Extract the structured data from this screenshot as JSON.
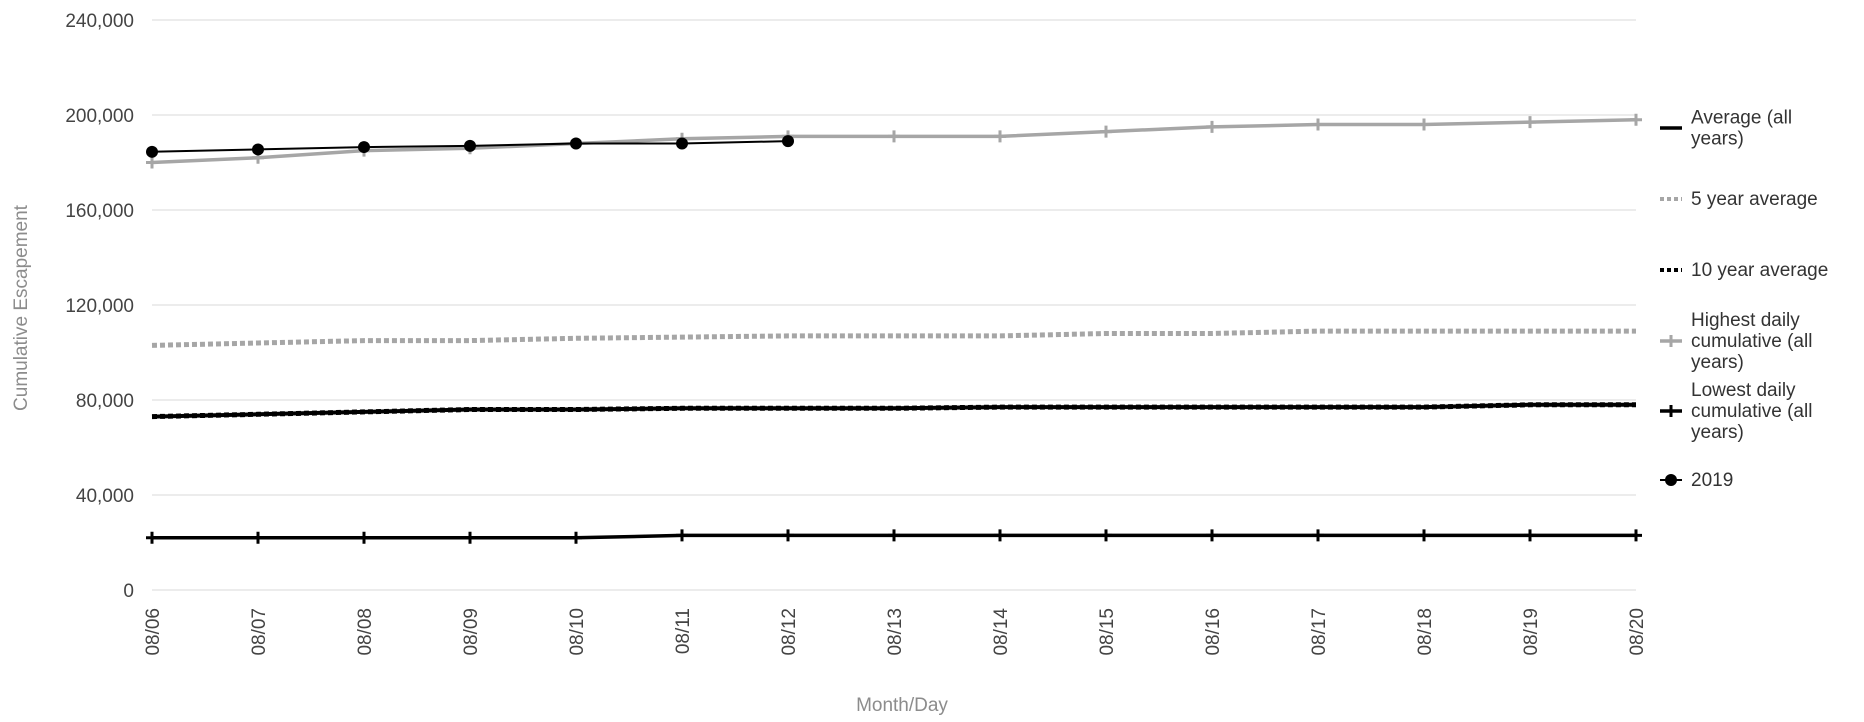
{
  "chart_data": {
    "type": "line",
    "xlabel": "Month/Day",
    "ylabel": "Cumulative Escapement",
    "categories": [
      "08/06",
      "08/07",
      "08/08",
      "08/09",
      "08/10",
      "08/11",
      "08/12",
      "08/13",
      "08/14",
      "08/15",
      "08/16",
      "08/17",
      "08/18",
      "08/19",
      "08/20"
    ],
    "ylim": [
      0,
      240000
    ],
    "yticks": [
      {
        "value": 0,
        "label": "0"
      },
      {
        "value": 40000,
        "label": "40,000"
      },
      {
        "value": 80000,
        "label": "80,000"
      },
      {
        "value": 120000,
        "label": "120,000"
      },
      {
        "value": 160000,
        "label": "160,000"
      },
      {
        "value": 200000,
        "label": "200,000"
      },
      {
        "value": 240000,
        "label": "240,000"
      }
    ],
    "grid": "horizontal",
    "legend_position": "right",
    "series": [
      {
        "name": "Average (all years)",
        "name_lines": [
          "Average (all",
          "years)"
        ],
        "style": "solid",
        "marker": "none",
        "color": "#000000",
        "values": [
          73000,
          74000,
          75000,
          76000,
          76000,
          76500,
          76500,
          76500,
          77000,
          77000,
          77000,
          77000,
          77000,
          78000,
          78000
        ]
      },
      {
        "name": "5 year average",
        "name_lines": [
          "5 year average"
        ],
        "style": "dotted",
        "marker": "none",
        "color": "#a6a6a6",
        "values": [
          103000,
          104000,
          105000,
          105000,
          106000,
          106500,
          107000,
          107000,
          107000,
          108000,
          108000,
          109000,
          109000,
          109000,
          109000
        ]
      },
      {
        "name": "10 year average",
        "name_lines": [
          "10 year average"
        ],
        "style": "dotted",
        "marker": "none",
        "color": "#000000",
        "values": [
          73000,
          74000,
          75000,
          76000,
          76000,
          76500,
          76500,
          76500,
          77000,
          77000,
          77000,
          77000,
          77000,
          78000,
          78000
        ]
      },
      {
        "name": "Highest daily cumulative (all years)",
        "name_lines": [
          "Highest daily",
          "cumulative (all",
          "years)"
        ],
        "style": "solid",
        "marker": "plus",
        "color": "#a6a6a6",
        "values": [
          180000,
          182000,
          185000,
          186000,
          188000,
          190000,
          191000,
          191000,
          191000,
          193000,
          195000,
          196000,
          196000,
          197000,
          198000
        ]
      },
      {
        "name": "Lowest daily cumulative (all years)",
        "name_lines": [
          "Lowest daily",
          "cumulative (all",
          "years)"
        ],
        "style": "solid",
        "marker": "plus",
        "color": "#000000",
        "values": [
          22000,
          22000,
          22000,
          22000,
          22000,
          23000,
          23000,
          23000,
          23000,
          23000,
          23000,
          23000,
          23000,
          23000,
          23000
        ]
      },
      {
        "name": "2019",
        "name_lines": [
          "2019"
        ],
        "style": "solid",
        "marker": "circle",
        "color": "#000000",
        "values": [
          184500,
          185500,
          186500,
          187000,
          188000,
          188000,
          189000,
          null,
          null,
          null,
          null,
          null,
          null,
          null,
          null
        ]
      }
    ]
  }
}
